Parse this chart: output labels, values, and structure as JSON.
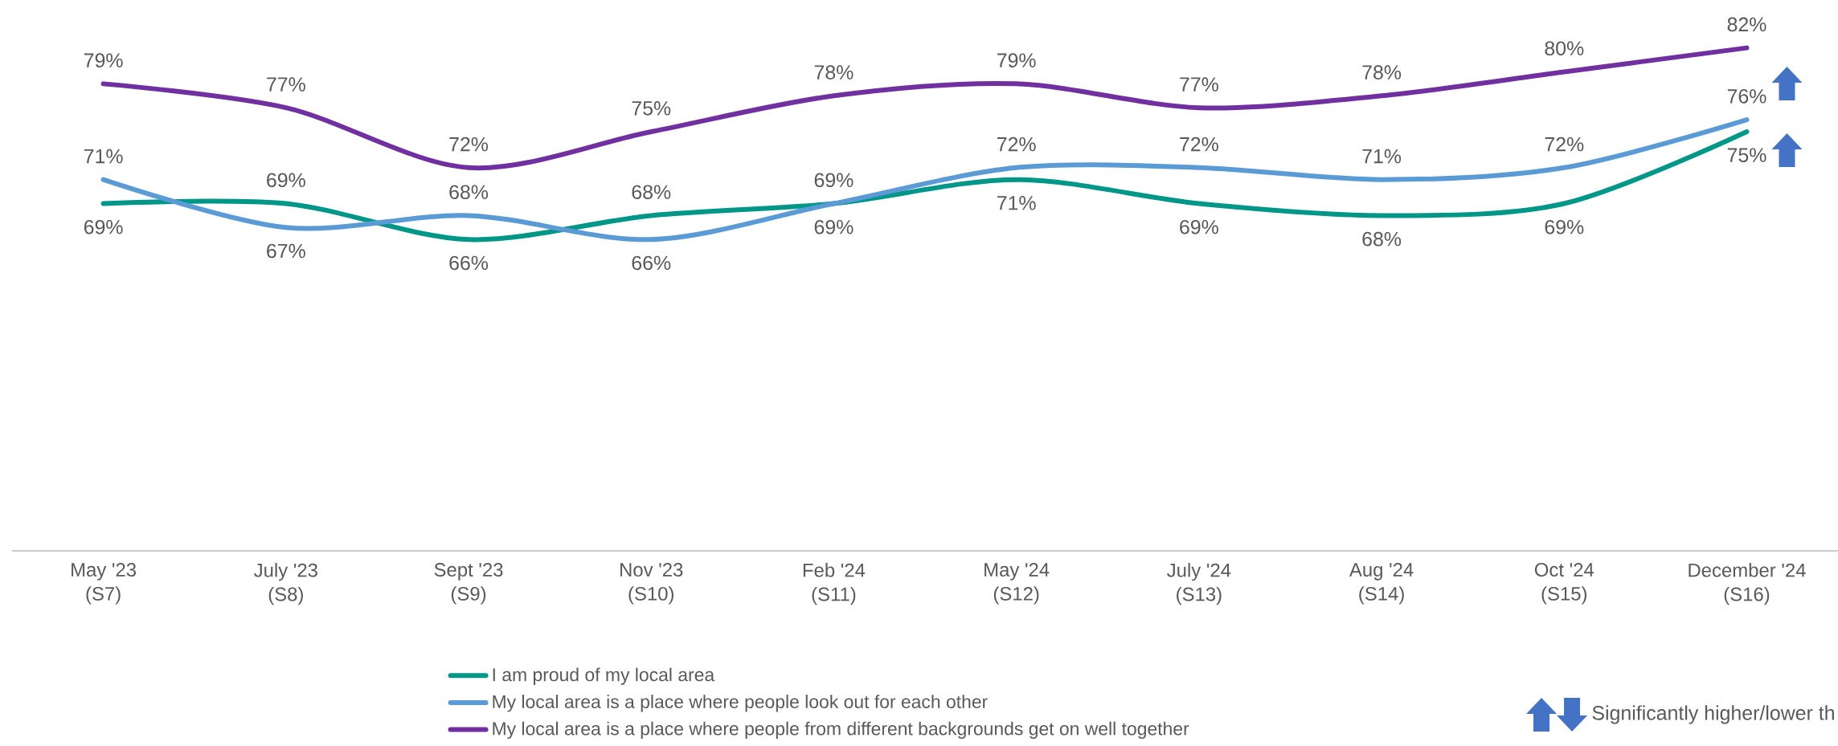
{
  "chart_data": {
    "type": "line",
    "categories": [
      "May '23\n(S7)",
      "July '23\n(S8)",
      "Sept '23\n(S9)",
      "Nov '23\n(S10)",
      "Feb '24\n(S11)",
      "May '24\n(S12)",
      "July '24\n(S13)",
      "Aug '24\n(S14)",
      "Oct '24\n(S15)",
      "December '24\n(S16)"
    ],
    "series": [
      {
        "name": "I am proud of my local area",
        "color": "#009688",
        "values": [
          69,
          69,
          66,
          68,
          69,
          71,
          69,
          68,
          69,
          75
        ],
        "value_labels": [
          "69%",
          "69%",
          "66%",
          "68%",
          "69%",
          "71%",
          "69%",
          "68%",
          "69%",
          "75%"
        ]
      },
      {
        "name": "My local area is a place where people look out for each other",
        "color": "#5b9bd5",
        "values": [
          71,
          67,
          68,
          66,
          69,
          72,
          72,
          71,
          72,
          76
        ],
        "value_labels": [
          "71%",
          "67%",
          "68%",
          "66%",
          "69%",
          "72%",
          "72%",
          "71%",
          "72%",
          "76%"
        ]
      },
      {
        "name": "My local area is a place where people from different backgrounds get on well together",
        "color": "#7030a0",
        "values": [
          79,
          77,
          72,
          75,
          78,
          79,
          77,
          78,
          80,
          82
        ],
        "value_labels": [
          "79%",
          "77%",
          "72%",
          "75%",
          "78%",
          "79%",
          "77%",
          "78%",
          "80%",
          "82%"
        ]
      }
    ],
    "grid": false,
    "legend": "bottom",
    "marker": "none",
    "line_style": "solid",
    "tick_labels": "x",
    "annotations": [
      "Significantly higher/lower th"
    ]
  }
}
